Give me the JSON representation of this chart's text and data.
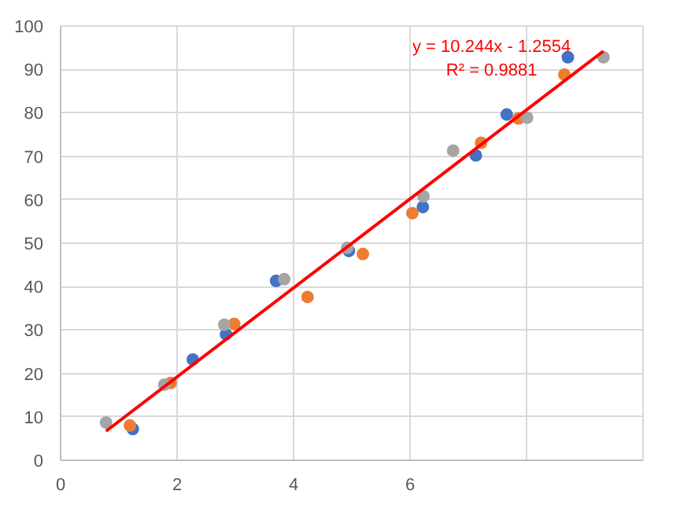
{
  "chart_data": {
    "type": "scatter",
    "xlim": [
      0,
      10
    ],
    "ylim": [
      0,
      100
    ],
    "xticks": [
      0,
      2,
      4,
      6,
      {
        "value": 8,
        "label": null
      },
      {
        "value": 10,
        "label": null
      }
    ],
    "yticks": [
      0,
      10,
      20,
      30,
      40,
      50,
      60,
      70,
      80,
      90,
      100
    ],
    "grid": true,
    "marker": "circle",
    "annotations": [
      "y = 10.244x - 1.2554",
      "R² = 0.9881"
    ],
    "series": [
      {
        "color": "#4472c4",
        "x": [
          1.24,
          2.27,
          2.84,
          3.7,
          4.95,
          6.22,
          7.13,
          7.66,
          8.71
        ],
        "values": [
          7.2,
          23.2,
          29.0,
          41.3,
          48.2,
          58.3,
          70.2,
          79.6,
          92.8
        ]
      },
      {
        "color": "#ed7d31",
        "x": [
          1.19,
          1.89,
          2.98,
          4.24,
          5.19,
          6.04,
          7.22,
          7.86,
          8.65
        ],
        "values": [
          8.0,
          17.8,
          31.4,
          37.6,
          47.5,
          56.9,
          73.1,
          78.7,
          88.8
        ]
      },
      {
        "color": "#a5a5a5",
        "x": [
          0.78,
          1.78,
          2.81,
          3.84,
          4.92,
          6.23,
          6.74,
          8.01,
          9.32
        ],
        "values": [
          8.7,
          17.4,
          31.2,
          41.7,
          48.9,
          60.8,
          71.3,
          78.9,
          92.8
        ]
      },
      {
        "type": "line",
        "color": "#ff0000",
        "line_style": "solid",
        "marker": "none",
        "x": [
          0.78,
          9.32
        ],
        "values": [
          6.7,
          94.2
        ]
      }
    ]
  }
}
